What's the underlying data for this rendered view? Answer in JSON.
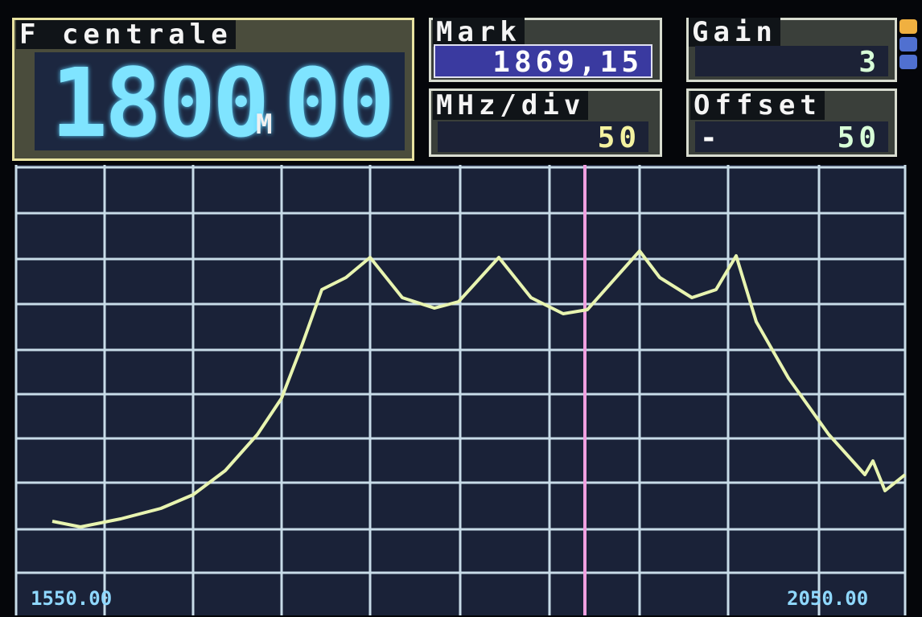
{
  "center_frequency": {
    "label": "F centrale",
    "integer": "1800",
    "unit": "M",
    "decimal": "00"
  },
  "mark": {
    "label": "Mark",
    "value": "1869,15"
  },
  "gain": {
    "label": "Gain",
    "value": "3"
  },
  "scale": {
    "label": "MHz/div",
    "value": "50"
  },
  "offset": {
    "label": "Offset",
    "sign": "-",
    "value": "50"
  },
  "plot": {
    "start_label": "1550.00",
    "end_label": "2050.00"
  }
}
